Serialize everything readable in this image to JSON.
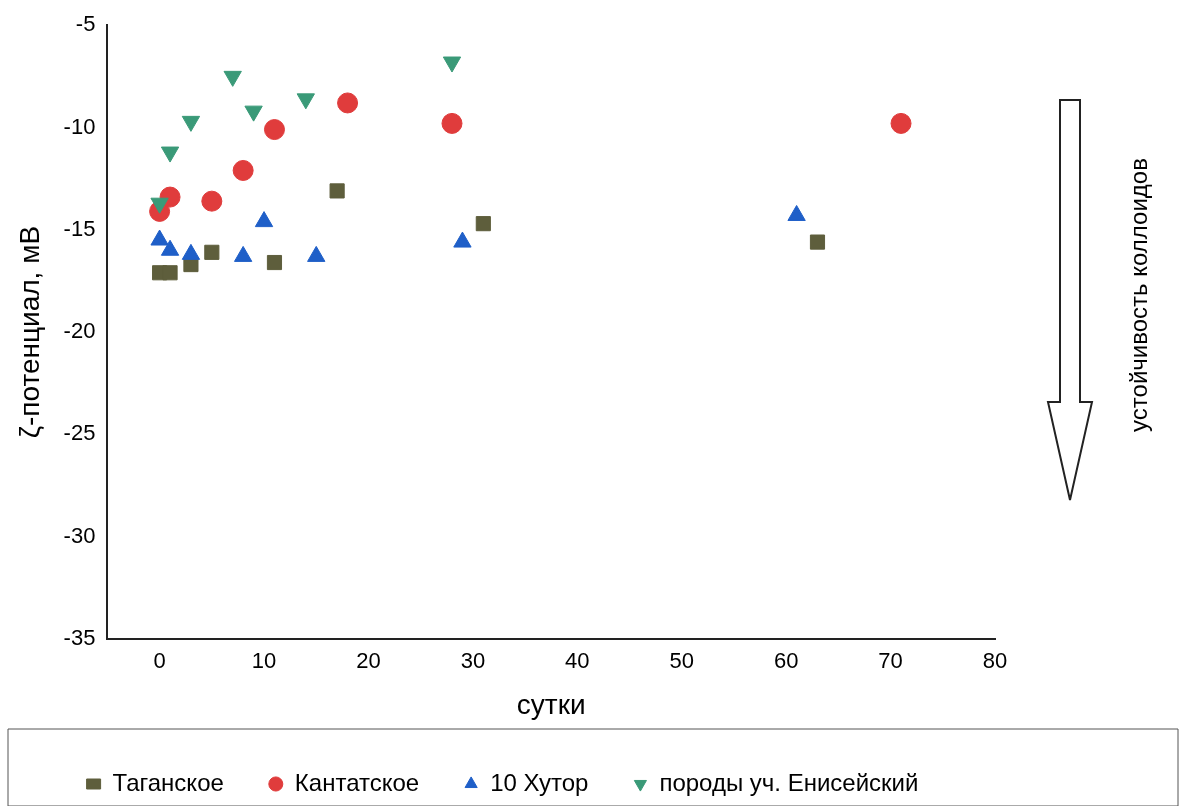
{
  "chart_data": {
    "type": "scatter",
    "xlabel": "сутки",
    "ylabel": "ζ-потенциал, мВ",
    "xlim": [
      -5,
      80
    ],
    "xticks": [
      0,
      10,
      20,
      30,
      40,
      50,
      60,
      70,
      80
    ],
    "ylim": [
      -35,
      -5
    ],
    "yticks": [
      -35,
      -30,
      -25,
      -20,
      -15,
      -10,
      -5
    ],
    "grid": false,
    "legend": "bottom",
    "annotations": [
      "устойчивость коллоидов"
    ],
    "series": [
      {
        "name": "Таганское",
        "color": "#5e5e3c",
        "marker": "square",
        "x": [
          0,
          1,
          3,
          5,
          11,
          17,
          31,
          63
        ],
        "values": [
          -17.1,
          -17.1,
          -16.7,
          -16.1,
          -16.6,
          -13.1,
          -14.7,
          -15.6
        ]
      },
      {
        "name": "Кантатское",
        "color": "#e03c3c",
        "marker": "circle",
        "x": [
          0,
          1,
          5,
          8,
          11,
          18,
          28,
          71
        ],
        "values": [
          -14.1,
          -13.4,
          -13.6,
          -12.1,
          -10.1,
          -8.8,
          -9.8,
          -9.8
        ]
      },
      {
        "name": "10 Хутор",
        "color": "#1f5fc8",
        "marker": "triangle",
        "x": [
          0,
          1,
          3,
          8,
          10,
          15,
          29,
          61
        ],
        "values": [
          -15.5,
          -16,
          -16.2,
          -16.3,
          -14.6,
          -16.3,
          -15.6,
          -14.3
        ]
      },
      {
        "name": "породы уч. Енисейский",
        "color": "#3a9a78",
        "marker": "triangle-down",
        "x": [
          0,
          1,
          3,
          7,
          9,
          14,
          28
        ],
        "values": [
          -13.7,
          -11.2,
          -9.7,
          -7.5,
          -9.2,
          -8.6,
          -6.8
        ]
      }
    ]
  }
}
